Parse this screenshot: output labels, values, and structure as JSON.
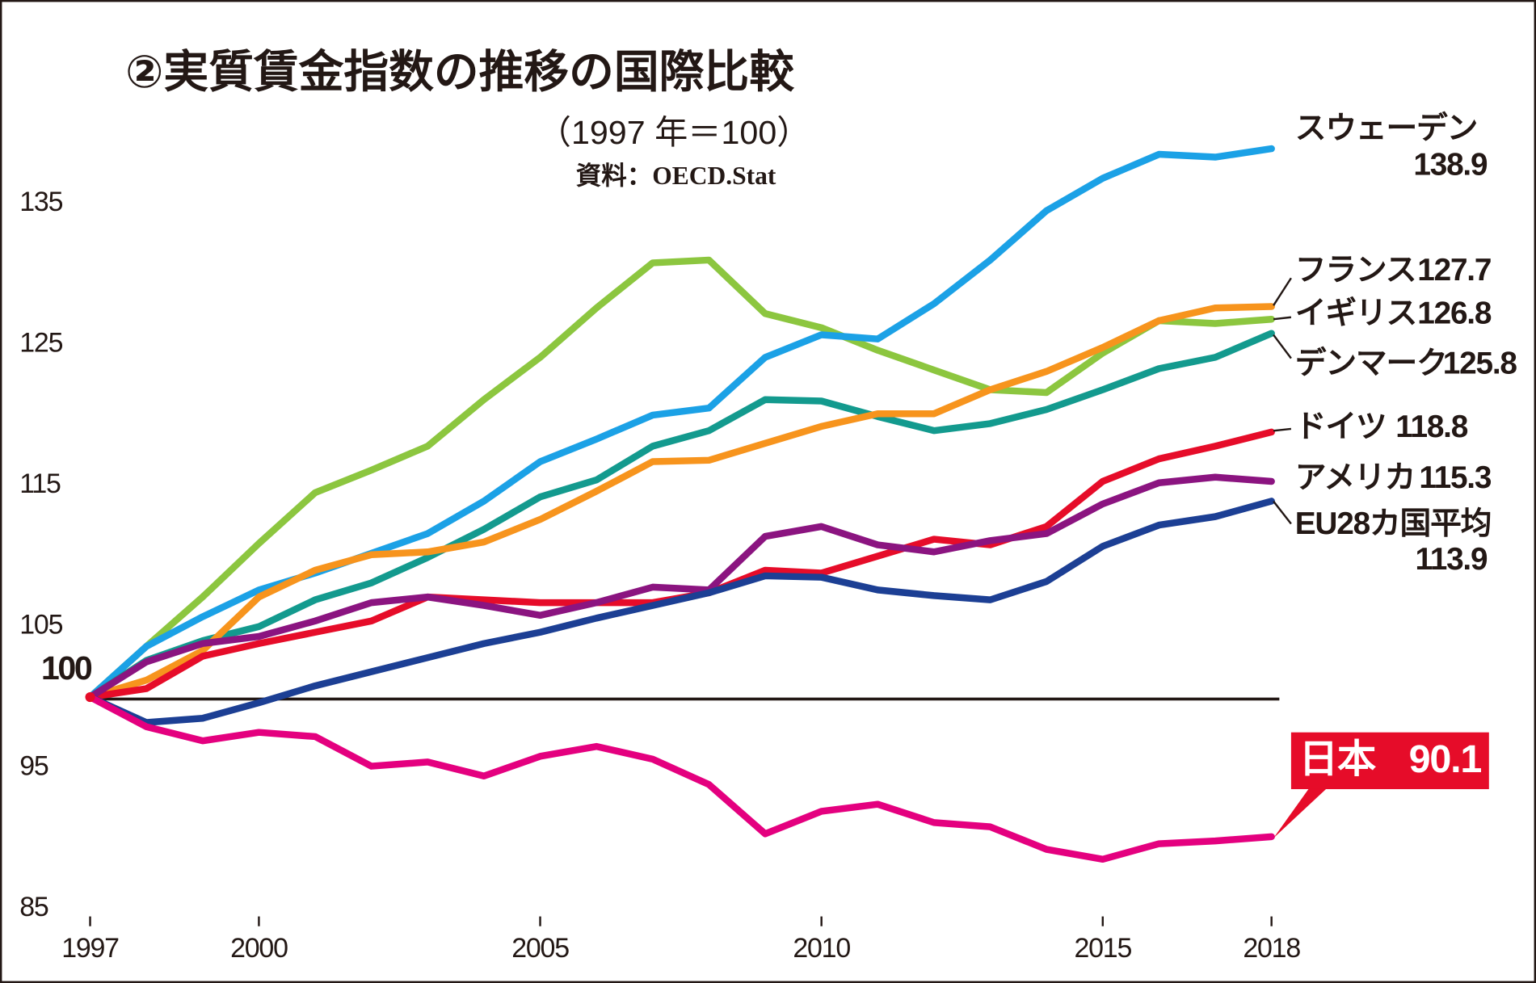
{
  "chart_data": {
    "type": "line",
    "title": "②実質賃金指数の推移の国際比較",
    "subtitle": "（1997 年＝100）",
    "source": "資料：OECD.Stat",
    "x": [
      1997,
      1998,
      1999,
      2000,
      2001,
      2002,
      2003,
      2004,
      2005,
      2006,
      2007,
      2008,
      2009,
      2010,
      2011,
      2012,
      2013,
      2014,
      2015,
      2016,
      2017,
      2018
    ],
    "xlim": [
      1997,
      2018
    ],
    "xticks": [
      1997,
      2000,
      2005,
      2010,
      2015,
      2018
    ],
    "ylim": [
      85,
      140
    ],
    "yticks": [
      85,
      95,
      105,
      115,
      125,
      135
    ],
    "reference_line": {
      "value": 100
    },
    "series": [
      {
        "name": "イギリス",
        "color": "#8cc63f",
        "values": [
          100,
          103.6,
          107.1,
          110.9,
          114.5,
          116.1,
          117.8,
          121.1,
          124.1,
          127.6,
          130.8,
          131,
          127.2,
          126.2,
          124.6,
          123.2,
          121.8,
          121.6,
          124.4,
          126.7,
          126.5,
          126.8
        ]
      },
      {
        "name": "スウェーデン",
        "color": "#1ba1e6",
        "values": [
          100,
          103.6,
          105.7,
          107.6,
          108.8,
          110.2,
          111.6,
          113.9,
          116.7,
          118.3,
          120,
          120.5,
          124.1,
          125.7,
          125.4,
          127.9,
          131,
          134.5,
          136.8,
          138.5,
          138.3,
          138.9
        ]
      },
      {
        "name": "デンマーク",
        "color": "#139a8e",
        "values": [
          100,
          102.6,
          104,
          105,
          106.9,
          108.1,
          109.9,
          111.9,
          114.2,
          115.4,
          117.8,
          118.9,
          121.1,
          121,
          119.9,
          118.9,
          119.4,
          120.4,
          121.8,
          123.3,
          124.1,
          125.8
        ]
      },
      {
        "name": "フランス",
        "color": "#f7941d",
        "values": [
          100,
          101.2,
          103.3,
          107.1,
          109,
          110.1,
          110.3,
          111,
          112.6,
          114.6,
          116.7,
          116.8,
          118,
          119.2,
          120.1,
          120.1,
          121.8,
          123.1,
          124.8,
          126.7,
          127.6,
          127.7
        ]
      },
      {
        "name": "ドイツ",
        "color": "#e60c29",
        "values": [
          100,
          100.6,
          102.9,
          103.8,
          104.6,
          105.4,
          107.1,
          106.9,
          106.7,
          106.7,
          106.7,
          107.4,
          109,
          108.8,
          110,
          111.2,
          110.8,
          112.1,
          115.3,
          116.9,
          117.8,
          118.8
        ]
      },
      {
        "name": "アメリカ",
        "color": "#8b1480",
        "values": [
          100,
          102.5,
          103.8,
          104.3,
          105.4,
          106.7,
          107.1,
          106.5,
          105.8,
          106.7,
          107.8,
          107.6,
          111.4,
          112.1,
          110.8,
          110.3,
          111.1,
          111.6,
          113.7,
          115.2,
          115.6,
          115.3
        ]
      },
      {
        "name": "EU28カ国平均",
        "color": "#1c3f94",
        "values": [
          100,
          98.2,
          98.5,
          99.6,
          100.8,
          101.8,
          102.8,
          103.8,
          104.6,
          105.6,
          106.5,
          107.4,
          108.6,
          108.5,
          107.6,
          107.2,
          106.9,
          108.2,
          110.7,
          112.2,
          112.8,
          113.9
        ]
      },
      {
        "name": "日本",
        "color": "#e4007f",
        "values": [
          100,
          97.9,
          96.9,
          97.5,
          97.2,
          95.1,
          95.4,
          94.4,
          95.8,
          96.5,
          95.6,
          93.8,
          90.3,
          91.9,
          92.4,
          91.1,
          90.8,
          89.2,
          88.5,
          89.6,
          89.8,
          90.1
        ]
      }
    ]
  }
}
